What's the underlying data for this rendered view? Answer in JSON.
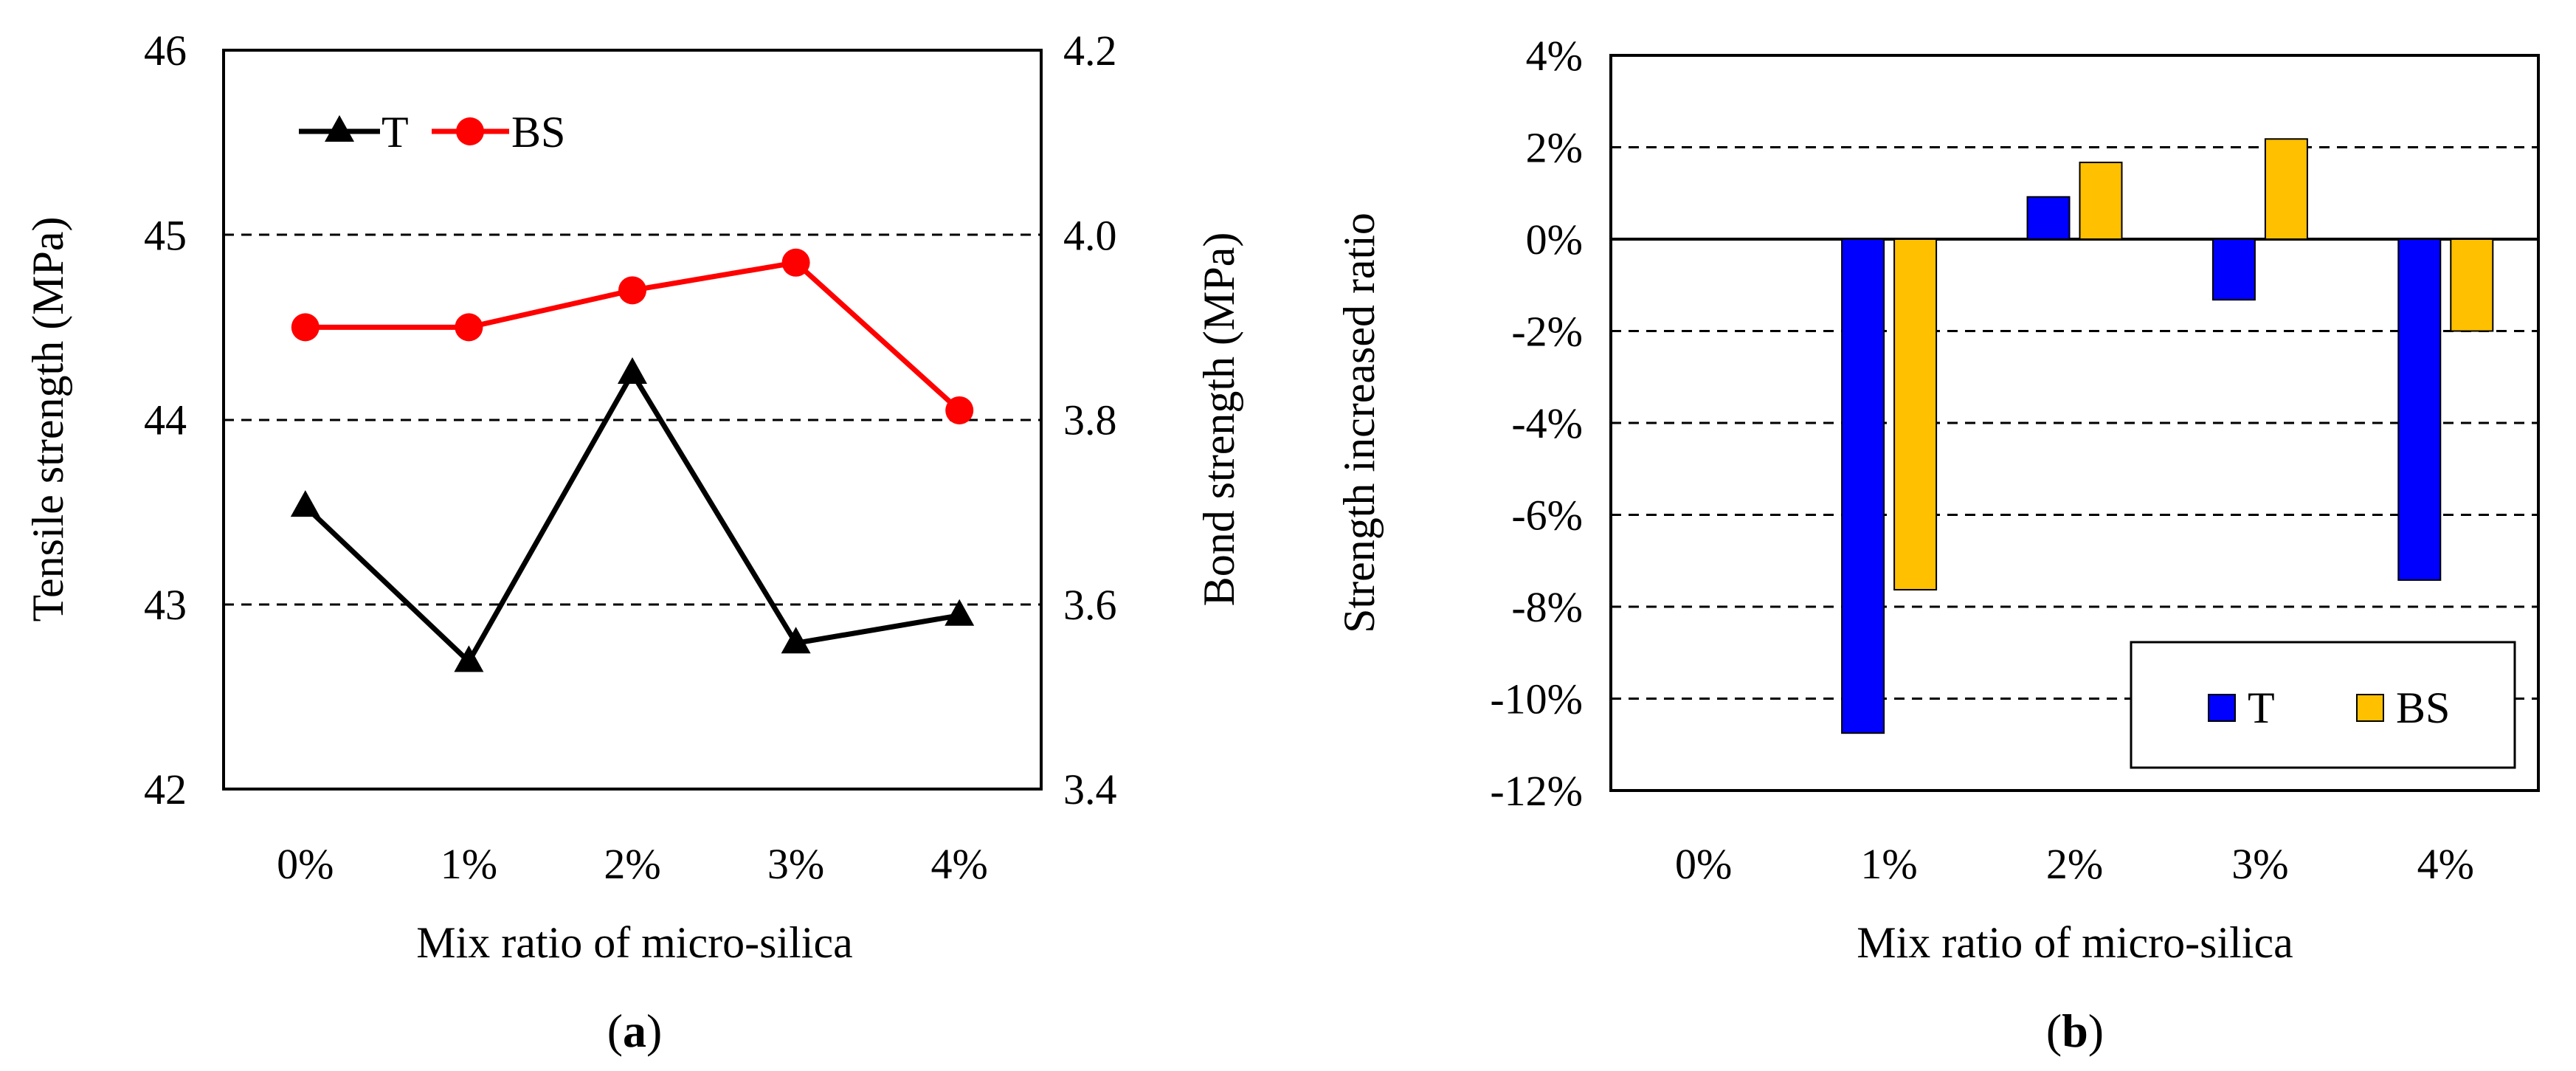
{
  "chart_data": [
    {
      "panel_label": "a",
      "type": "line",
      "categories": [
        "0%",
        "1%",
        "2%",
        "3%",
        "4%"
      ],
      "xlabel": "Mix ratio of micro-silica",
      "ylabel": "Tensile strength (MPa)",
      "ylabel_right": "Bond strength (MPa)",
      "ylim": [
        42,
        46
      ],
      "yticks": [
        "42",
        "43",
        "44",
        "45",
        "46"
      ],
      "ylim_right": [
        3.4,
        4.2
      ],
      "yticks_right": [
        "3.4",
        "3.6",
        "3.8",
        "4.0",
        "4.2"
      ],
      "grid": "horizontal dashed",
      "legend_position": "top-left",
      "series": [
        {
          "name": "T",
          "axis": "left",
          "color": "#000000",
          "marker": "triangle",
          "values": [
            43.53,
            42.69,
            44.25,
            42.79,
            42.94
          ]
        },
        {
          "name": "BS",
          "axis": "right",
          "color": "#ff0000",
          "marker": "circle",
          "values": [
            3.9,
            3.9,
            3.94,
            3.97,
            3.81
          ]
        }
      ]
    },
    {
      "panel_label": "b",
      "type": "bar",
      "categories": [
        "0%",
        "1%",
        "2%",
        "3%",
        "4%"
      ],
      "xlabel": "Mix ratio of micro-silica",
      "ylabel": "Strength increased ratio",
      "ylim": [
        -12,
        4
      ],
      "yticks": [
        "-12%",
        "-10%",
        "-8%",
        "-6%",
        "-4%",
        "-2%",
        "0%",
        "2%",
        "4%"
      ],
      "grid": "horizontal dashed",
      "legend_position": "bottom-right",
      "series": [
        {
          "name": "T",
          "color": "#0000ff",
          "values": [
            0,
            -10.75,
            0.92,
            -1.32,
            -7.42
          ]
        },
        {
          "name": "BS",
          "color": "#ffc000",
          "values": [
            0,
            -7.63,
            1.67,
            2.18,
            -2.0
          ]
        }
      ]
    }
  ]
}
